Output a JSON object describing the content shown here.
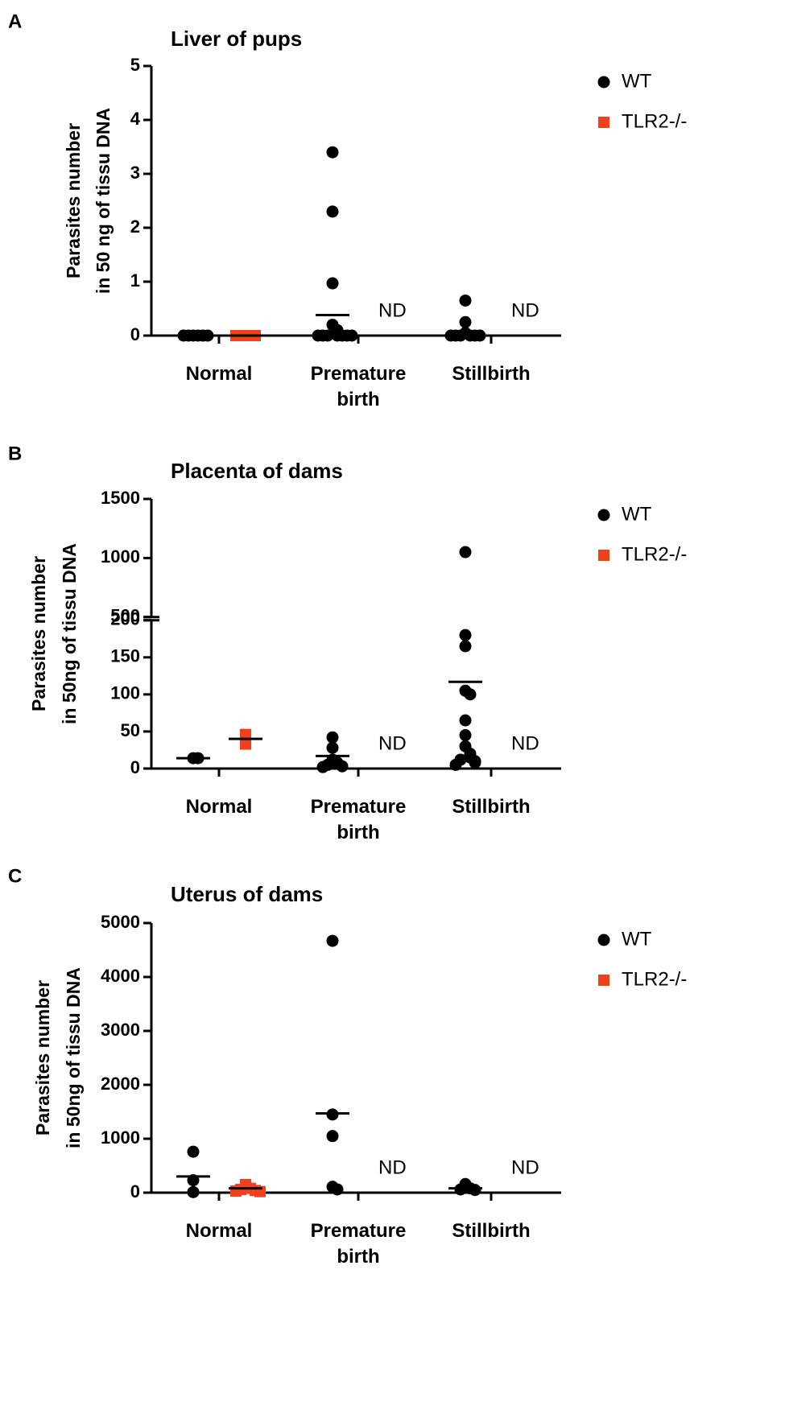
{
  "chart_data": [
    {
      "type": "scatter",
      "panel": "A",
      "title": "Liver of pups",
      "ylabel": [
        "Parasites number",
        "in 50 ng of tissu DNA"
      ],
      "categories": [
        "Normal",
        "Premature birth",
        "Stillbirth"
      ],
      "series": [
        {
          "name": "WT",
          "color": "#000000",
          "marker": "circle",
          "values": [
            [
              0,
              0,
              0,
              0,
              0,
              0
            ],
            [
              3.4,
              2.3,
              0.97,
              0.2,
              0.1,
              0,
              0,
              0,
              0,
              0,
              0,
              0
            ],
            [
              0.65,
              0.25,
              0.05,
              0,
              0,
              0,
              0,
              0,
              0
            ]
          ],
          "means": [
            0,
            0.38,
            0.05
          ]
        },
        {
          "name": "TLR2-/-",
          "color": "#f0401e",
          "marker": "square",
          "values": [
            [
              0,
              0,
              0,
              0,
              0
            ],
            [],
            []
          ],
          "means": [
            0,
            null,
            null
          ]
        }
      ],
      "annotations": [
        {
          "text": "ND",
          "category": "Premature birth"
        },
        {
          "text": "ND",
          "category": "Stillbirth"
        }
      ],
      "ylim": [
        0,
        5
      ],
      "yticks": [
        0,
        1,
        2,
        3,
        4,
        5
      ]
    },
    {
      "type": "scatter",
      "panel": "B",
      "title": "Placenta of dams",
      "ylabel": [
        "Parasites number",
        "in 50ng of tissu DNA"
      ],
      "categories": [
        "Normal",
        "Premature birth",
        "Stillbirth"
      ],
      "series": [
        {
          "name": "WT",
          "color": "#000000",
          "marker": "circle",
          "values": [
            [
              14,
              14
            ],
            [
              42,
              28,
              12,
              8,
              5,
              3,
              2
            ],
            [
              1050,
              180,
              165,
              105,
              100,
              65,
              45,
              30,
              20,
              15,
              12,
              10,
              8,
              5
            ]
          ],
          "means": [
            14,
            17,
            117
          ]
        },
        {
          "name": "TLR2-/-",
          "color": "#f0401e",
          "marker": "square",
          "values": [
            [
              33,
              46
            ],
            [],
            []
          ],
          "means": [
            40,
            null,
            null
          ]
        }
      ],
      "annotations": [
        {
          "text": "ND",
          "category": "Premature birth"
        },
        {
          "text": "ND",
          "category": "Stillbirth"
        }
      ],
      "ylim": [
        0,
        1500
      ],
      "axis_break": [
        200,
        500
      ],
      "yticks": [
        0,
        50,
        100,
        150,
        200,
        500,
        1000,
        1500
      ]
    },
    {
      "type": "scatter",
      "panel": "C",
      "title": "Uterus of dams",
      "ylabel": [
        "Parasites number",
        "in 50ng of tissu DNA"
      ],
      "categories": [
        "Normal",
        "Premature birth",
        "Stillbirth"
      ],
      "series": [
        {
          "name": "WT",
          "color": "#000000",
          "marker": "circle",
          "values": [
            [
              760,
              230,
              10
            ],
            [
              4670,
              1450,
              1050,
              110,
              60
            ],
            [
              160,
              80,
              60,
              50
            ]
          ],
          "means": [
            300,
            1470,
            80
          ]
        },
        {
          "name": "TLR2-/-",
          "color": "#f0401e",
          "marker": "square",
          "values": [
            [
              150,
              80,
              60,
              40,
              30,
              20
            ],
            [],
            []
          ],
          "means": [
            80,
            null,
            null
          ]
        }
      ],
      "annotations": [
        {
          "text": "ND",
          "category": "Premature birth"
        },
        {
          "text": "ND",
          "category": "Stillbirth"
        }
      ],
      "ylim": [
        0,
        5000
      ],
      "yticks": [
        0,
        1000,
        2000,
        3000,
        4000,
        5000
      ]
    }
  ]
}
